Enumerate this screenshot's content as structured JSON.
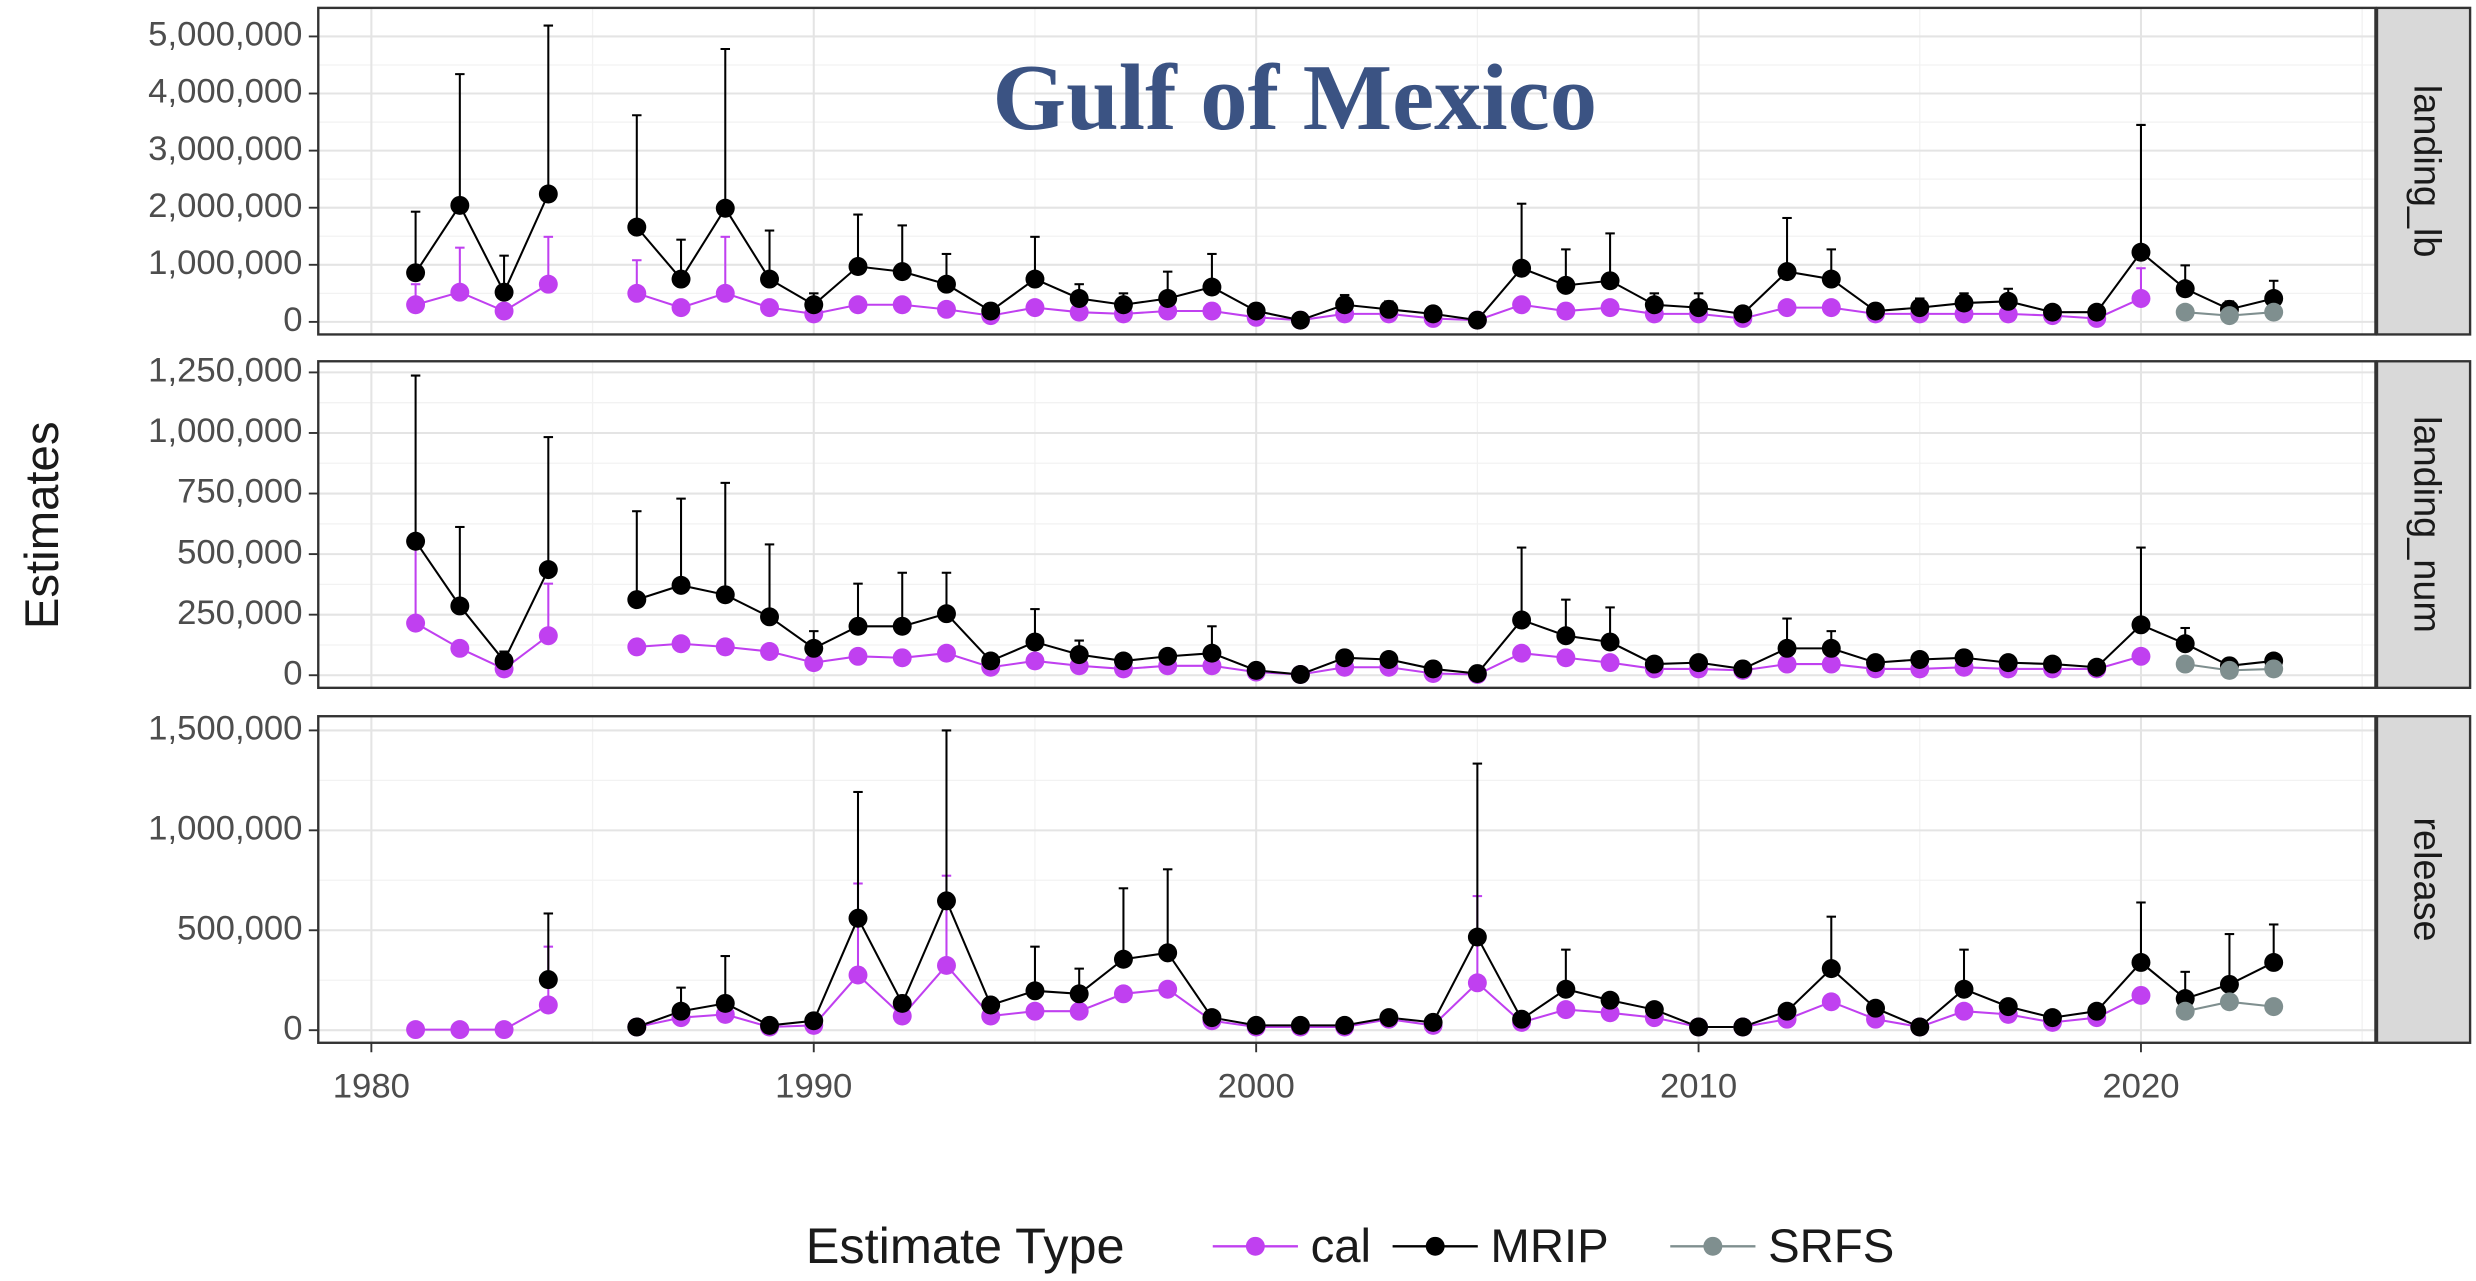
{
  "chart_data": {
    "type": "line",
    "title": "Gulf of Mexico",
    "ylabel": "Estimates",
    "legend_title": "Estimate Type",
    "x": [
      1981,
      1982,
      1983,
      1984,
      1985,
      1986,
      1987,
      1988,
      1989,
      1990,
      1991,
      1992,
      1993,
      1994,
      1995,
      1996,
      1997,
      1998,
      1999,
      2000,
      2001,
      2002,
      2003,
      2004,
      2005,
      2006,
      2007,
      2008,
      2009,
      2010,
      2011,
      2012,
      2013,
      2014,
      2015,
      2016,
      2017,
      2018,
      2019,
      2020,
      2021,
      2022,
      2023
    ],
    "xlim": [
      1978.8,
      2025.3
    ],
    "xticks": [
      1980,
      1990,
      2000,
      2010,
      2020
    ],
    "grid": true,
    "panels": [
      {
        "label": "landing_lb",
        "ylim": [
          -220000,
          5500000
        ],
        "yticks": [
          0,
          {
            "value": 1000000,
            "label": "1,000,000"
          },
          {
            "value": 2000000,
            "label": "2,000,000"
          },
          {
            "value": 3000000,
            "label": "3,000,000"
          },
          {
            "value": 4000000,
            "label": "4,000,000"
          },
          {
            "value": 5000000,
            "label": "5,000,000"
          }
        ],
        "series": [
          {
            "name": "cal",
            "color": "#c040f0",
            "values": [
              300000,
              520000,
              190000,
              660000,
              null,
              500000,
              250000,
              500000,
              250000,
              140000,
              300000,
              300000,
              220000,
              110000,
              250000,
              170000,
              140000,
              190000,
              190000,
              80000,
              30000,
              140000,
              140000,
              60000,
              30000,
              300000,
              190000,
              250000,
              140000,
              140000,
              60000,
              250000,
              250000,
              140000,
              140000,
              140000,
              140000,
              110000,
              60000,
              410000,
              null,
              null,
              null
            ],
            "upper": [
              660000,
              1300000,
              300000,
              1490000,
              null,
              1080000,
              null,
              1490000,
              null,
              null,
              null,
              null,
              null,
              null,
              null,
              null,
              null,
              null,
              null,
              null,
              null,
              null,
              null,
              null,
              null,
              null,
              null,
              null,
              null,
              null,
              null,
              null,
              null,
              null,
              null,
              null,
              null,
              null,
              null,
              940000,
              null,
              null,
              null
            ]
          },
          {
            "name": "MRIP",
            "color": "#000000",
            "values": [
              860000,
              2040000,
              520000,
              2240000,
              null,
              1660000,
              750000,
              1990000,
              750000,
              300000,
              970000,
              880000,
              660000,
              190000,
              750000,
              410000,
              300000,
              410000,
              610000,
              190000,
              30000,
              300000,
              220000,
              140000,
              30000,
              940000,
              640000,
              720000,
              300000,
              250000,
              140000,
              880000,
              750000,
              190000,
              250000,
              330000,
              360000,
              170000,
              170000,
              1220000,
              580000,
              220000,
              410000
            ],
            "upper": [
              1930000,
              4340000,
              1160000,
              5190000,
              null,
              3620000,
              1440000,
              4780000,
              1600000,
              500000,
              1880000,
              1690000,
              1190000,
              300000,
              1490000,
              660000,
              500000,
              880000,
              1190000,
              280000,
              80000,
              470000,
              360000,
              220000,
              80000,
              2070000,
              1270000,
              1550000,
              500000,
              500000,
              220000,
              1820000,
              1270000,
              280000,
              410000,
              500000,
              580000,
              250000,
              220000,
              3450000,
              990000,
              360000,
              720000
            ]
          },
          {
            "name": "SRFS",
            "color": "#7f8f8f",
            "x": [
              2021,
              2022,
              2023
            ],
            "values": [
              170000,
              110000,
              170000
            ]
          }
        ]
      },
      {
        "label": "landing_num",
        "ylim": [
          -52000,
          1296000
        ],
        "yticks": [
          0,
          {
            "value": 250000,
            "label": "250,000"
          },
          {
            "value": 500000,
            "label": "500,000"
          },
          {
            "value": 750000,
            "label": "750,000"
          },
          {
            "value": 1000000,
            "label": "1,000,000"
          },
          {
            "value": 1250000,
            "label": "1,250,000"
          }
        ],
        "series": [
          {
            "name": "cal",
            "color": "#c040f0",
            "values": [
              215000,
              111000,
              26000,
              163000,
              null,
              117000,
              130000,
              117000,
              98000,
              52000,
              78000,
              72000,
              91000,
              33000,
              59000,
              39000,
              26000,
              39000,
              39000,
              13000,
              3000,
              33000,
              33000,
              7000,
              3000,
              91000,
              72000,
              52000,
              26000,
              26000,
              20000,
              46000,
              46000,
              26000,
              26000,
              33000,
              26000,
              26000,
              26000,
              78000,
              null,
              null,
              null
            ],
            "upper": [
              540000,
              null,
              null,
              378000,
              null,
              null,
              null,
              null,
              null,
              null,
              null,
              null,
              null,
              null,
              null,
              null,
              null,
              null,
              null,
              null,
              null,
              null,
              null,
              null,
              null,
              null,
              null,
              null,
              null,
              null,
              null,
              null,
              null,
              null,
              null,
              null,
              null,
              null,
              null,
              null,
              null,
              null,
              null
            ]
          },
          {
            "name": "MRIP",
            "color": "#000000",
            "values": [
              553000,
              286000,
              59000,
              436000,
              null,
              312000,
              371000,
              332000,
              241000,
              111000,
              202000,
              202000,
              254000,
              59000,
              137000,
              85000,
              59000,
              78000,
              91000,
              20000,
              3000,
              72000,
              65000,
              26000,
              7000,
              228000,
              163000,
              137000,
              46000,
              52000,
              26000,
              111000,
              111000,
              52000,
              65000,
              72000,
              52000,
              46000,
              33000,
              208000,
              130000,
              39000,
              59000
            ],
            "upper": [
              1237000,
              612000,
              98000,
              983000,
              null,
              677000,
              729000,
              794000,
              540000,
              182000,
              378000,
              423000,
              423000,
              null,
              273000,
              143000,
              null,
              null,
              202000,
              null,
              null,
              null,
              null,
              null,
              null,
              527000,
              312000,
              280000,
              null,
              null,
              null,
              234000,
              182000,
              null,
              null,
              null,
              null,
              null,
              null,
              527000,
              195000,
              null,
              null
            ]
          },
          {
            "name": "SRFS",
            "color": "#7f8f8f",
            "x": [
              2021,
              2022,
              2023
            ],
            "values": [
              46000,
              20000,
              26000
            ]
          }
        ]
      },
      {
        "label": "release",
        "ylim": [
          -63000,
          1571000
        ],
        "yticks": [
          0,
          {
            "value": 500000,
            "label": "500,000"
          },
          {
            "value": 1000000,
            "label": "1,000,000"
          },
          {
            "value": 1500000,
            "label": "1,500,000"
          }
        ],
        "series": [
          {
            "name": "cal",
            "color": "#c040f0",
            "values": [
              3000,
              3000,
              3000,
              126000,
              null,
              16000,
              63000,
              79000,
              16000,
              24000,
              276000,
              71000,
              324000,
              71000,
              95000,
              95000,
              182000,
              205000,
              47000,
              16000,
              16000,
              16000,
              55000,
              24000,
              237000,
              39000,
              103000,
              87000,
              63000,
              16000,
              16000,
              55000,
              142000,
              55000,
              16000,
              95000,
              79000,
              39000,
              63000,
              174000,
              null,
              null,
              null
            ],
            "upper": [
              null,
              null,
              null,
              418000,
              null,
              null,
              null,
              null,
              null,
              null,
              734000,
              null,
              773000,
              null,
              null,
              null,
              null,
              null,
              null,
              null,
              null,
              null,
              null,
              null,
              671000,
              null,
              null,
              null,
              null,
              null,
              null,
              null,
              null,
              null,
              null,
              null,
              null,
              null,
              null,
              null,
              null,
              null,
              null
            ]
          },
          {
            "name": "MRIP",
            "color": "#000000",
            "values": [
              null,
              null,
              null,
              253000,
              null,
              16000,
              95000,
              134000,
              24000,
              47000,
              560000,
              134000,
              647000,
              126000,
              197000,
              182000,
              355000,
              387000,
              63000,
              24000,
              24000,
              24000,
              63000,
              39000,
              466000,
              55000,
              205000,
              150000,
              103000,
              16000,
              16000,
              95000,
              308000,
              110000,
              16000,
              205000,
              118000,
              63000,
              95000,
              339000,
              158000,
              229000,
              339000
            ],
            "upper": [
              null,
              null,
              null,
              584000,
              null,
              null,
              213000,
              371000,
              null,
              null,
              1192000,
              null,
              1500000,
              null,
              418000,
              308000,
              710000,
              805000,
              null,
              null,
              null,
              null,
              null,
              null,
              1334000,
              null,
              403000,
              null,
              null,
              null,
              null,
              null,
              568000,
              null,
              null,
              403000,
              null,
              null,
              null,
              639000,
              292000,
              481000,
              529000
            ]
          },
          {
            "name": "SRFS",
            "color": "#7f8f8f",
            "x": [
              2021,
              2022,
              2023
            ],
            "values": [
              95000,
              142000,
              118000
            ]
          }
        ]
      }
    ]
  }
}
